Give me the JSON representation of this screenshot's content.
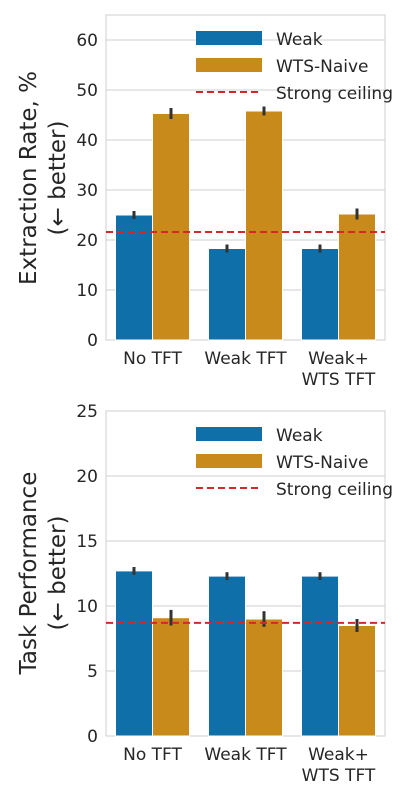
{
  "chart_data": [
    {
      "type": "bar",
      "categories": [
        "No TFT",
        "Weak TFT",
        "Weak+\nWTS TFT"
      ],
      "series": [
        {
          "name": "Weak",
          "values": [
            25,
            18.3,
            18.3
          ],
          "error": [
            0.8,
            0.8,
            0.8
          ]
        },
        {
          "name": "WTS-Naive",
          "values": [
            45.3,
            45.8,
            25.2
          ],
          "error": [
            1.1,
            0.9,
            1.1
          ]
        }
      ],
      "reference_line": {
        "name": "Strong ceiling",
        "y": 21.6,
        "style": "dashed"
      },
      "ylabel_lines": [
        "Extraction Rate, %",
        "(← better)"
      ],
      "ylim": [
        0,
        65
      ],
      "yticks": [
        0,
        10,
        20,
        30,
        40,
        50,
        60
      ],
      "grid": true,
      "legend_position": "top-right"
    },
    {
      "type": "bar",
      "categories": [
        "No TFT",
        "Weak TFT",
        "Weak+\nWTS TFT"
      ],
      "series": [
        {
          "name": "Weak",
          "values": [
            12.7,
            12.3,
            12.3
          ],
          "error": [
            0.3,
            0.3,
            0.3
          ]
        },
        {
          "name": "WTS-Naive",
          "values": [
            9.1,
            9.0,
            8.5
          ],
          "error": [
            0.6,
            0.6,
            0.5
          ]
        }
      ],
      "reference_line": {
        "name": "Strong ceiling",
        "y": 8.7,
        "style": "dashed"
      },
      "ylabel_lines": [
        "Task Performance",
        "(← better)"
      ],
      "ylim": [
        0,
        25
      ],
      "yticks": [
        0,
        5,
        10,
        15,
        20,
        25
      ],
      "grid": true,
      "legend_position": "top-right"
    }
  ],
  "colors": {
    "weak": "#0f6fa8",
    "wts_naive": "#c98a1c",
    "ceiling": "#d62728",
    "grid": "#cfcfcf",
    "spine": "#cfcfcf",
    "errorbar": "#333333"
  }
}
